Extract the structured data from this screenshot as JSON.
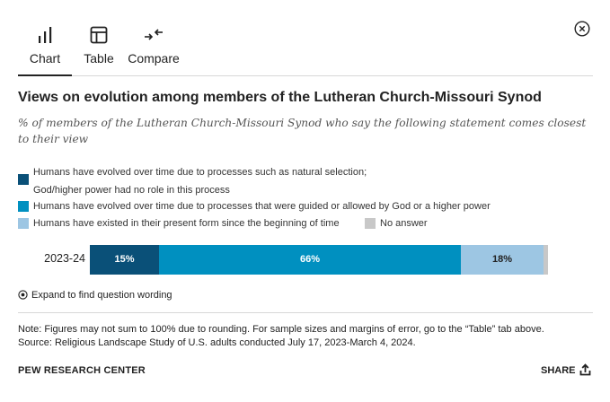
{
  "tabs": [
    {
      "label": "Chart",
      "icon": "bar-chart-icon",
      "active": true
    },
    {
      "label": "Table",
      "icon": "table-icon",
      "active": false
    },
    {
      "label": "Compare",
      "icon": "compare-icon",
      "active": false
    }
  ],
  "close_icon": "close-icon",
  "chart_data": {
    "type": "bar",
    "orientation": "horizontal-stacked",
    "title": "Views on evolution among members of the Lutheran Church-Missouri Synod",
    "subtitle": "% of members of the Lutheran Church-Missouri Synod who say the following statement comes closest to their view",
    "categories": [
      "2023-24"
    ],
    "series": [
      {
        "name": "Humans have evolved over time due to processes such as natural selection; God/higher power had no role in this process",
        "values": [
          15
        ],
        "label": "15%",
        "color": "#0a5078",
        "label_color": "#ffffff"
      },
      {
        "name": "Humans have evolved over time due to processes that were guided or allowed by God or a higher power",
        "values": [
          66
        ],
        "label": "66%",
        "color": "#0090c0",
        "label_color": "#ffffff"
      },
      {
        "name": "Humans have existed in their present form since the beginning of time",
        "values": [
          18
        ],
        "label": "18%",
        "color": "#9dc6e3",
        "label_color": "#222222"
      },
      {
        "name": "No answer",
        "values": [
          1
        ],
        "label": "",
        "color": "#c8c8c8",
        "label_color": "#222222"
      }
    ],
    "xlim": [
      0,
      100
    ],
    "legend_position": "top"
  },
  "expand_label": "Expand to find question wording",
  "notes": {
    "line1": "Note: Figures may not sum to 100% due to rounding. For sample sizes and margins of error, go to the “Table” tab above.",
    "line2": "Source: Religious Landscape Study of U.S. adults conducted July 17, 2023-March 4, 2024."
  },
  "footer": {
    "brand": "PEW RESEARCH CENTER",
    "share_label": "SHARE"
  }
}
